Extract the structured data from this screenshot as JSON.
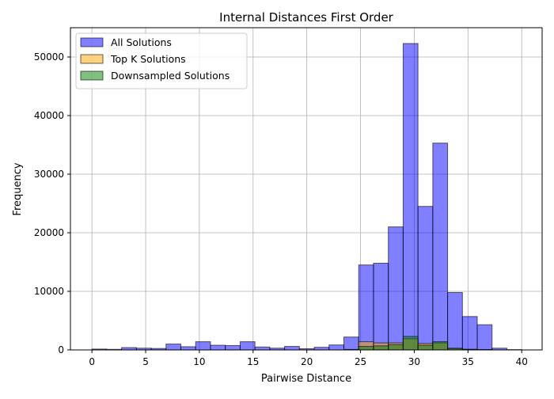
{
  "chart_data": {
    "type": "bar",
    "title": "Internal Distances First Order",
    "xlabel": "Pairwise Distance",
    "ylabel": "Frequency",
    "xlim": [
      -2,
      41.9
    ],
    "ylim": [
      0,
      55000
    ],
    "xticks": [
      0,
      5,
      10,
      15,
      20,
      25,
      30,
      35,
      40
    ],
    "yticks": [
      0,
      10000,
      20000,
      30000,
      40000,
      50000
    ],
    "grid": true,
    "legend_position": "top-left",
    "bin_edges": [
      0,
      1.379,
      2.759,
      4.138,
      5.517,
      6.897,
      8.276,
      9.655,
      11.034,
      12.414,
      13.793,
      15.172,
      16.552,
      17.931,
      19.31,
      20.69,
      22.069,
      23.448,
      24.828,
      26.207,
      27.586,
      28.966,
      30.345,
      31.724,
      33.103,
      34.483,
      35.862,
      37.241,
      38.621,
      40.0
    ],
    "series": [
      {
        "name": "All Solutions",
        "color": "#0000ff",
        "opacity": 0.5,
        "values": [
          150,
          100,
          400,
          300,
          250,
          1000,
          550,
          1400,
          800,
          750,
          1400,
          500,
          300,
          600,
          200,
          450,
          850,
          2200,
          14500,
          14800,
          21000,
          52300,
          24500,
          35300,
          9800,
          5700,
          4300,
          300,
          50
        ]
      },
      {
        "name": "Top K Solutions",
        "color": "#ffa500",
        "opacity": 0.5,
        "values": [
          0,
          0,
          0,
          0,
          0,
          0,
          0,
          0,
          0,
          0,
          0,
          0,
          0,
          0,
          0,
          0,
          0,
          80,
          1400,
          1200,
          1200,
          1900,
          1100,
          1200,
          200,
          100,
          50,
          0,
          0
        ]
      },
      {
        "name": "Downsampled Solutions",
        "color": "#008000",
        "opacity": 0.5,
        "values": [
          0,
          0,
          0,
          0,
          0,
          0,
          0,
          0,
          0,
          0,
          0,
          0,
          0,
          0,
          0,
          0,
          0,
          50,
          600,
          700,
          900,
          2300,
          800,
          1400,
          300,
          100,
          50,
          0,
          0
        ]
      }
    ]
  }
}
